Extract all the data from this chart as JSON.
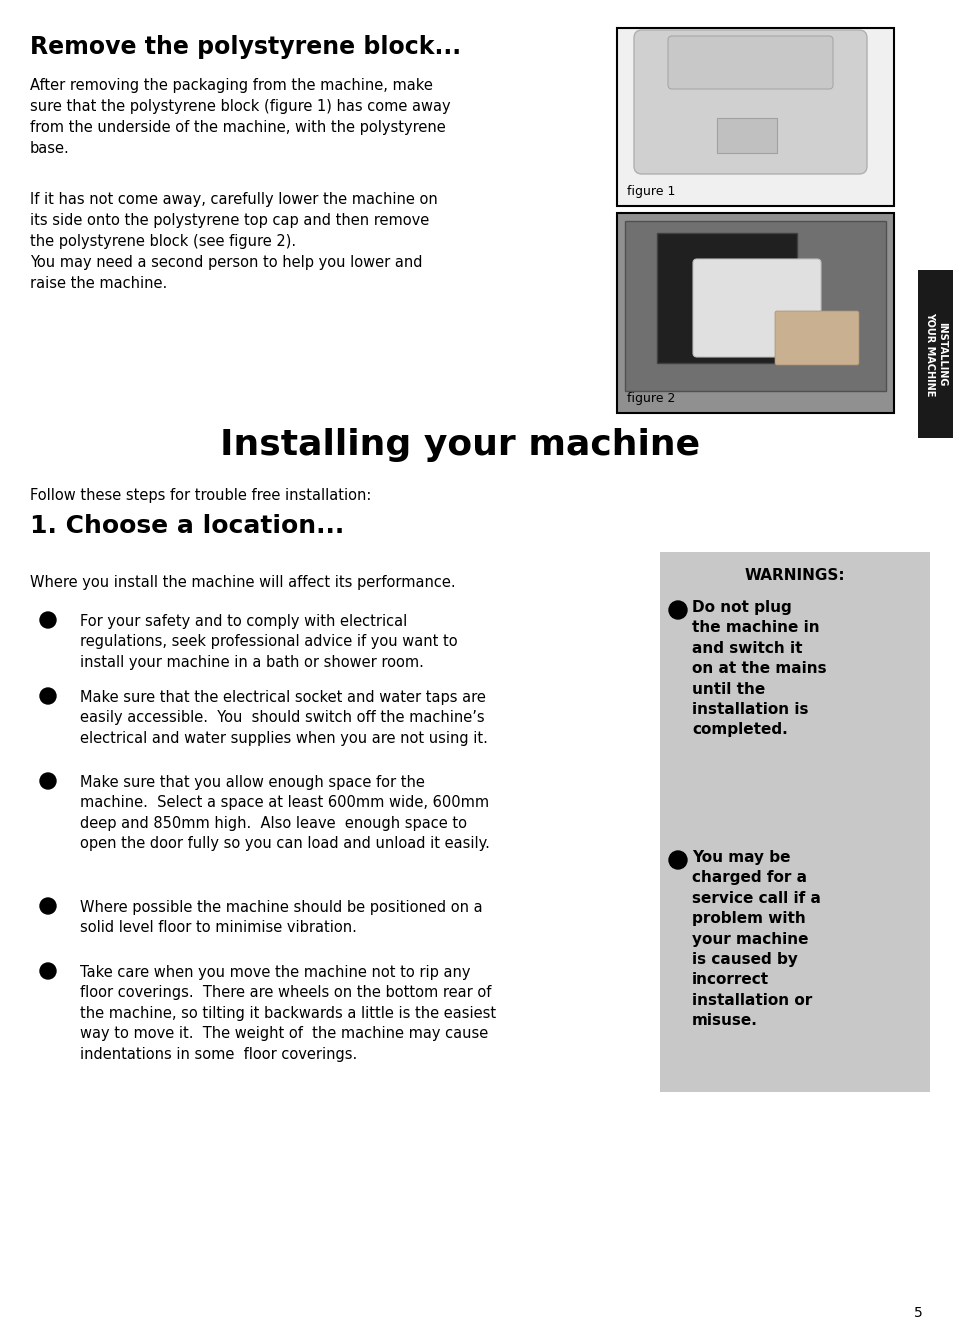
{
  "page_bg": "#ffffff",
  "section1_title": "Remove the polystyrene block...",
  "section1_para1": "After removing the packaging from the machine, make\nsure that the polystyrene block (figure 1) has come away\nfrom the underside of the machine, with the polystyrene\nbase.",
  "section1_para2": "If it has not come away, carefully lower the machine on\nits side onto the polystyrene top cap and then remove\nthe polystyrene block (see figure 2).\nYou may need a second person to help you lower and\nraise the machine.",
  "main_title": "Installing your machine",
  "intro_text": "Follow these steps for trouble free installation:",
  "section2_title": "1. Choose a location...",
  "location_intro": "Where you install the machine will affect its performance.",
  "bullets": [
    "For your safety and to comply with electrical\nregulations, seek professional advice if you want to\ninstall your machine in a bath or shower room.",
    "Make sure that the electrical socket and water taps are\neasily accessible.  You  should switch off the machine’s\nelectrical and water supplies when you are not using it.",
    "Make sure that you allow enough space for the\nmachine.  Select a space at least 600mm wide, 600mm\ndeep and 850mm high.  Also leave  enough space to\nopen the door fully so you can load and unload it easily.",
    "Where possible the machine should be positioned on a\nsolid level floor to minimise vibration.",
    "Take care when you move the machine not to rip any\nfloor coverings.  There are wheels on the bottom rear of\nthe machine, so tilting it backwards a little is the easiest\nway to move it.  The weight of  the machine may cause\nindentations in some  floor coverings."
  ],
  "warnings_title": "WARNINGS:",
  "warning1_text": "Do not plug\nthe machine in\nand switch it\non at the mains\nuntil the\ninstallation is\ncompleted.",
  "warning2_text": "You may be\ncharged for a\nservice call if a\nproblem with\nyour machine\nis caused by\nincorrect\ninstallation or\nmisuse.",
  "sidebar_text": "INSTALLING\nYOUR MACHINE",
  "page_number": "5",
  "sidebar_bg": "#1a1a1a",
  "warnings_bg": "#c8c8c8",
  "fig1_label": "figure 1",
  "fig2_label": "figure 2"
}
